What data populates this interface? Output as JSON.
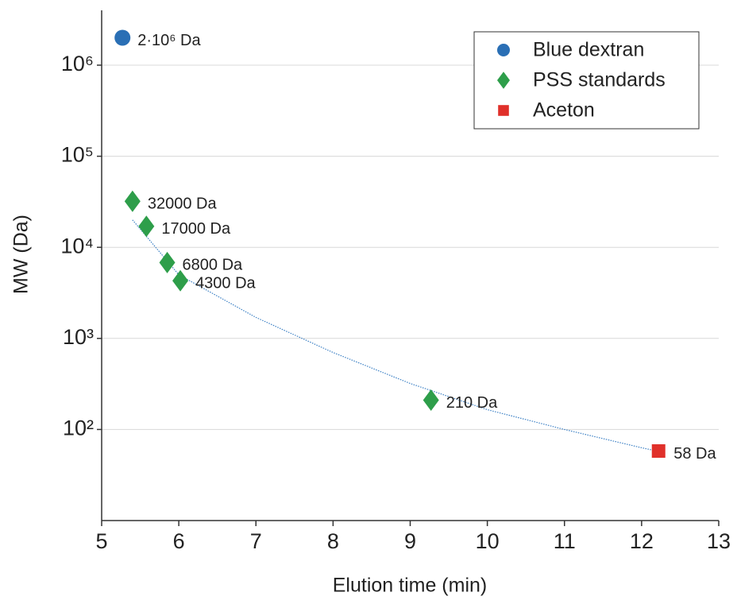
{
  "chart_data": {
    "type": "scatter",
    "xlabel": "Elution time (min)",
    "ylabel": "MW (Da)",
    "log_y": true,
    "grid": true,
    "legend": "upper right",
    "xlim": [
      5,
      13
    ],
    "xticks": [
      5,
      6,
      7,
      8,
      9,
      10,
      11,
      12,
      13
    ],
    "ylim": [
      10,
      4000000
    ],
    "yticks": [
      {
        "value": 100,
        "label": "10²"
      },
      {
        "value": 1000,
        "label": "10³"
      },
      {
        "value": 10000,
        "label": "10⁴"
      },
      {
        "value": 100000,
        "label": "10⁵"
      },
      {
        "value": 1000000,
        "label": "10⁶"
      }
    ],
    "series": [
      {
        "name": "Blue dextran",
        "color": "#2a6fb5",
        "marker": "circle",
        "x": [
          5.27
        ],
        "values": [
          2000000
        ],
        "value_labels": [
          "2·10⁶ Da"
        ]
      },
      {
        "name": "PSS standards",
        "color": "#2e9e4a",
        "marker": "diamond",
        "x": [
          5.4,
          5.58,
          5.85,
          6.02,
          9.27
        ],
        "values": [
          32000,
          17000,
          6800,
          4300,
          210
        ],
        "value_labels": [
          "32000 Da",
          "17000 Da",
          "6800 Da",
          "4300 Da",
          "210 Da"
        ]
      },
      {
        "name": "Aceton",
        "color": "#e0302a",
        "marker": "square",
        "x": [
          12.22
        ],
        "values": [
          58
        ],
        "value_labels": [
          "58 Da"
        ]
      }
    ],
    "fit": {
      "color": "#3a7fc4",
      "x": [
        5.4,
        6,
        7,
        8,
        9,
        10,
        11,
        12,
        12.2
      ],
      "values": [
        20000,
        5000,
        1700,
        700,
        320,
        165,
        100,
        63,
        58
      ]
    }
  }
}
